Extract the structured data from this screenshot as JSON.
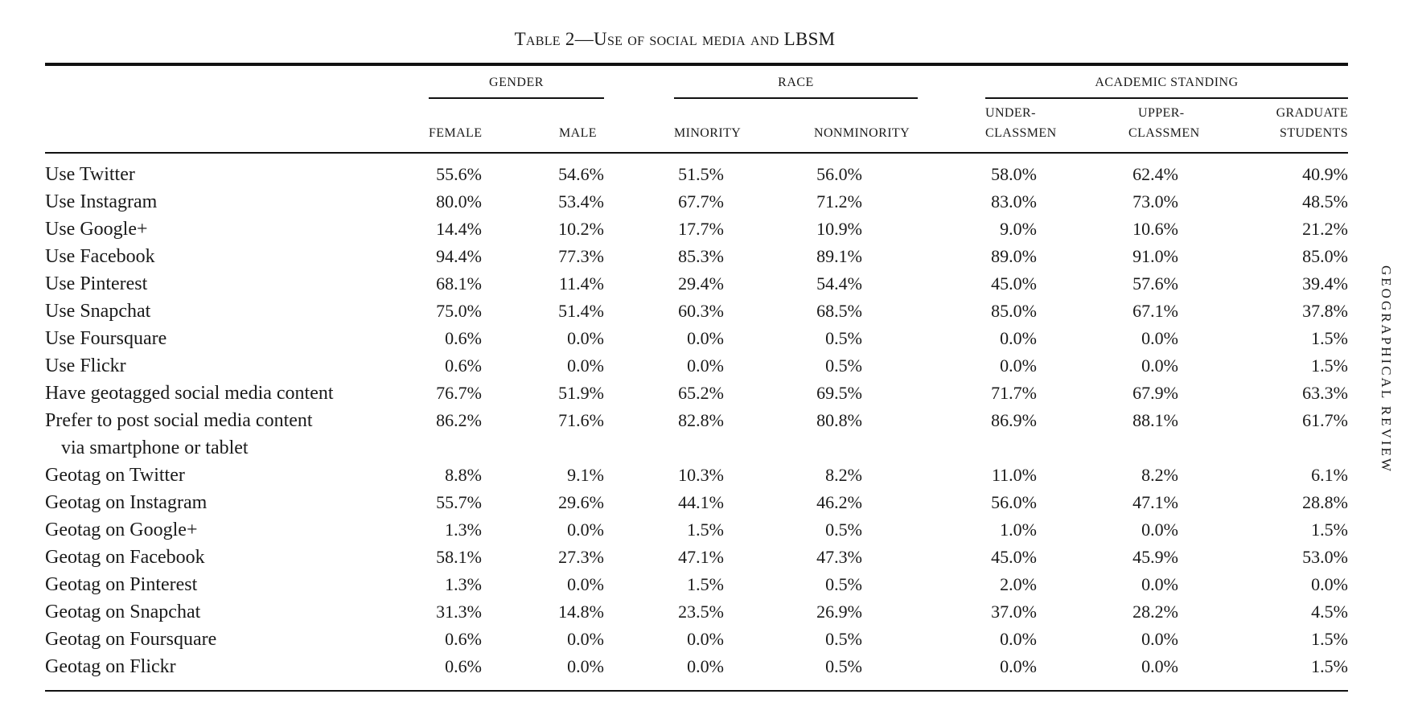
{
  "caption": "Table 2—Use of social media and LBSM",
  "side_title": "GEOGRAPHICAL REVIEW",
  "groups": {
    "gender": "GENDER",
    "race": "RACE",
    "academic": "ACADEMIC STANDING"
  },
  "columns": {
    "female": "FEMALE",
    "male": "MALE",
    "minority": "MINORITY",
    "nonminority": "NONMINORITY",
    "under_1": "UNDER-",
    "under_2": "CLASSMEN",
    "upper_1": "UPPER-",
    "upper_2": "CLASSMEN",
    "grad_1": "GRADUATE",
    "grad_2": "STUDENTS"
  },
  "rows": [
    {
      "label": "Use Twitter",
      "label2": "",
      "values": [
        "55.6%",
        "54.6%",
        "51.5%",
        "56.0%",
        "58.0%",
        "62.4%",
        "40.9%"
      ]
    },
    {
      "label": "Use Instagram",
      "label2": "",
      "values": [
        "80.0%",
        "53.4%",
        "67.7%",
        "71.2%",
        "83.0%",
        "73.0%",
        "48.5%"
      ]
    },
    {
      "label": "Use Google+",
      "label2": "",
      "values": [
        "14.4%",
        "10.2%",
        "17.7%",
        "10.9%",
        "9.0%",
        "10.6%",
        "21.2%"
      ]
    },
    {
      "label": "Use Facebook",
      "label2": "",
      "values": [
        "94.4%",
        "77.3%",
        "85.3%",
        "89.1%",
        "89.0%",
        "91.0%",
        "85.0%"
      ]
    },
    {
      "label": "Use Pinterest",
      "label2": "",
      "values": [
        "68.1%",
        "11.4%",
        "29.4%",
        "54.4%",
        "45.0%",
        "57.6%",
        "39.4%"
      ]
    },
    {
      "label": "Use Snapchat",
      "label2": "",
      "values": [
        "75.0%",
        "51.4%",
        "60.3%",
        "68.5%",
        "85.0%",
        "67.1%",
        "37.8%"
      ]
    },
    {
      "label": "Use Foursquare",
      "label2": "",
      "values": [
        "0.6%",
        "0.0%",
        "0.0%",
        "0.5%",
        "0.0%",
        "0.0%",
        "1.5%"
      ]
    },
    {
      "label": "Use Flickr",
      "label2": "",
      "values": [
        "0.6%",
        "0.0%",
        "0.0%",
        "0.5%",
        "0.0%",
        "0.0%",
        "1.5%"
      ]
    },
    {
      "label": "Have geotagged social media content",
      "label2": "",
      "values": [
        "76.7%",
        "51.9%",
        "65.2%",
        "69.5%",
        "71.7%",
        "67.9%",
        "63.3%"
      ]
    },
    {
      "label": "Prefer to post social media content",
      "label2": "via smartphone or tablet",
      "values": [
        "86.2%",
        "71.6%",
        "82.8%",
        "80.8%",
        "86.9%",
        "88.1%",
        "61.7%"
      ]
    },
    {
      "label": "Geotag on Twitter",
      "label2": "",
      "values": [
        "8.8%",
        "9.1%",
        "10.3%",
        "8.2%",
        "11.0%",
        "8.2%",
        "6.1%"
      ]
    },
    {
      "label": "Geotag on Instagram",
      "label2": "",
      "values": [
        "55.7%",
        "29.6%",
        "44.1%",
        "46.2%",
        "56.0%",
        "47.1%",
        "28.8%"
      ]
    },
    {
      "label": "Geotag on Google+",
      "label2": "",
      "values": [
        "1.3%",
        "0.0%",
        "1.5%",
        "0.5%",
        "1.0%",
        "0.0%",
        "1.5%"
      ]
    },
    {
      "label": "Geotag on Facebook",
      "label2": "",
      "values": [
        "58.1%",
        "27.3%",
        "47.1%",
        "47.3%",
        "45.0%",
        "45.9%",
        "53.0%"
      ]
    },
    {
      "label": "Geotag on Pinterest",
      "label2": "",
      "values": [
        "1.3%",
        "0.0%",
        "1.5%",
        "0.5%",
        "2.0%",
        "0.0%",
        "0.0%"
      ]
    },
    {
      "label": "Geotag on Snapchat",
      "label2": "",
      "values": [
        "31.3%",
        "14.8%",
        "23.5%",
        "26.9%",
        "37.0%",
        "28.2%",
        "4.5%"
      ]
    },
    {
      "label": "Geotag on Foursquare",
      "label2": "",
      "values": [
        "0.6%",
        "0.0%",
        "0.0%",
        "0.5%",
        "0.0%",
        "0.0%",
        "1.5%"
      ]
    },
    {
      "label": "Geotag on Flickr",
      "label2": "",
      "values": [
        "0.6%",
        "0.0%",
        "0.0%",
        "0.5%",
        "0.0%",
        "0.0%",
        "1.5%"
      ]
    }
  ]
}
